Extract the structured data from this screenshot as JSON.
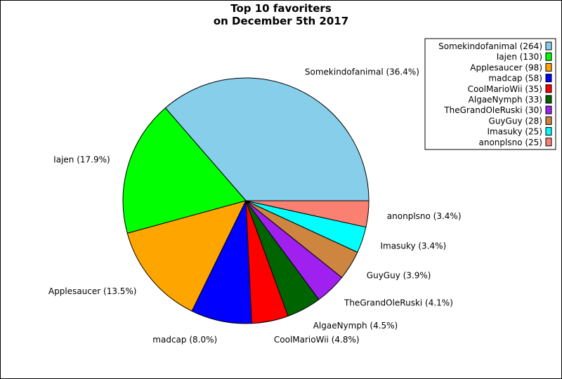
{
  "chart_data": {
    "type": "pie",
    "title_lines": [
      "Top 10 favoriters",
      "on December 5th 2017"
    ],
    "legend_position": "top-right",
    "slices": [
      {
        "name": "Somekindofanimal",
        "value": 264,
        "percent": "36.4%",
        "color": "#87ceeb",
        "legend_label": "Somekindofanimal (264)",
        "slice_label": "Somekindofanimal (36.4%)"
      },
      {
        "name": "Iajen",
        "value": 130,
        "percent": "17.9%",
        "color": "#00ff00",
        "legend_label": "Iajen (130)",
        "slice_label": "Iajen (17.9%)"
      },
      {
        "name": "Applesaucer",
        "value": 98,
        "percent": "13.5%",
        "color": "#ffa500",
        "legend_label": "Applesaucer (98)",
        "slice_label": "Applesaucer (13.5%)"
      },
      {
        "name": "madcap",
        "value": 58,
        "percent": "8.0%",
        "color": "#0000ff",
        "legend_label": "madcap (58)",
        "slice_label": "madcap (8.0%)"
      },
      {
        "name": "CoolMarioWii",
        "value": 35,
        "percent": "4.8%",
        "color": "#ff0000",
        "legend_label": "CoolMarioWii (35)",
        "slice_label": "CoolMarioWii (4.8%)"
      },
      {
        "name": "AlgaeNymph",
        "value": 33,
        "percent": "4.5%",
        "color": "#006400",
        "legend_label": "AlgaeNymph (33)",
        "slice_label": "AlgaeNymph (4.5%)"
      },
      {
        "name": "TheGrandOleRuski",
        "value": 30,
        "percent": "4.1%",
        "color": "#a020f0",
        "legend_label": "TheGrandOleRuski (30)",
        "slice_label": "TheGrandOleRuski (4.1%)"
      },
      {
        "name": "GuyGuy",
        "value": 28,
        "percent": "3.9%",
        "color": "#cd853f",
        "legend_label": "GuyGuy (28)",
        "slice_label": "GuyGuy (3.9%)"
      },
      {
        "name": "Imasuky",
        "value": 25,
        "percent": "3.4%",
        "color": "#00ffff",
        "legend_label": "Imasuky (25)",
        "slice_label": "Imasuky (3.4%)"
      },
      {
        "name": "anonplsno",
        "value": 25,
        "percent": "3.4%",
        "color": "#fa8072",
        "legend_label": "anonplsno (25)",
        "slice_label": "anonplsno (3.4%)"
      }
    ]
  }
}
